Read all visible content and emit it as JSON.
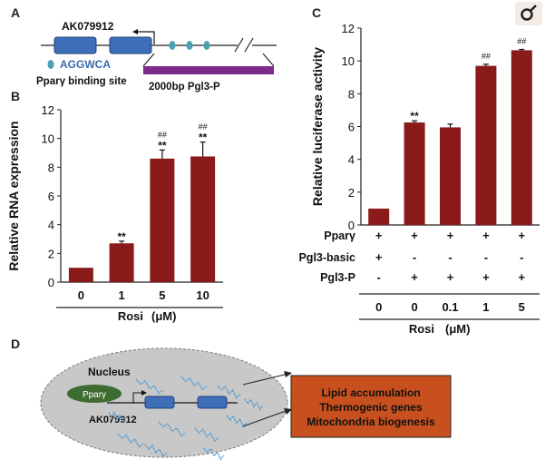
{
  "panel_a": {
    "letter": "A",
    "gene_label": "AK079912",
    "motif_legend": "AGGWCA",
    "binding_site_label": "Pparγ binding site",
    "promoter_label": "2000bp Pgl3-P"
  },
  "panel_b": {
    "letter": "B"
  },
  "panel_c": {
    "letter": "C"
  },
  "panel_d": {
    "letter": "D",
    "nucleus_label": "Nucleus",
    "ppar_label": "Pparγ",
    "gene_label": "AK079912",
    "outcomes": [
      "Lipid accumulation",
      "Thermogenic genes",
      "Mitochondria biogenesis"
    ]
  },
  "corner_icon": "search-icon",
  "colors": {
    "bar": "#8b1a1a",
    "motif": "#5aa0b8",
    "promoter": "#7b2a8a",
    "ppar": "#3d6b30",
    "outcome_box": "#c8501e",
    "nucleus": "#c8c8c8"
  },
  "chart_data": [
    {
      "type": "bar",
      "panel": "B",
      "ylabel": "Relative RNA expression",
      "xlabel": "Rosi (μM)",
      "xlabel_parts": [
        "Rosi",
        "(μM)"
      ],
      "categories": [
        "0",
        "1",
        "5",
        "10"
      ],
      "values": [
        1.0,
        2.7,
        8.6,
        8.75
      ],
      "errors": [
        0.0,
        0.15,
        0.6,
        1.0
      ],
      "annotations": [
        [
          "",
          ""
        ],
        [
          "**",
          ""
        ],
        [
          "**",
          "##"
        ],
        [
          "**",
          "##"
        ]
      ],
      "ylim": [
        0,
        12
      ],
      "yticks": [
        0,
        2,
        4,
        6,
        8,
        10,
        12
      ]
    },
    {
      "type": "bar",
      "panel": "C",
      "ylabel": "Relative luciferase activity",
      "xlabel": "Rosi (μM)",
      "xlabel_parts": [
        "Rosi",
        "(μM)"
      ],
      "categories": [
        "0",
        "0",
        "0.1",
        "1",
        "5"
      ],
      "values": [
        1.0,
        6.25,
        5.95,
        9.7,
        10.65
      ],
      "errors": [
        0.0,
        0.1,
        0.2,
        0.1,
        0.05
      ],
      "annotations": [
        [
          "",
          ""
        ],
        [
          "**",
          ""
        ],
        [
          "",
          ""
        ],
        [
          "",
          "##"
        ],
        [
          "",
          "##"
        ]
      ],
      "ylim": [
        0,
        12
      ],
      "yticks": [
        0,
        2,
        4,
        6,
        8,
        10,
        12
      ],
      "conditions": [
        {
          "label": "Pparγ",
          "values": [
            "+",
            "+",
            "+",
            "+",
            "+"
          ]
        },
        {
          "label": "Pgl3-basic",
          "values": [
            "+",
            "-",
            "-",
            "-",
            "-"
          ]
        },
        {
          "label": "Pgl3-P",
          "values": [
            "-",
            "+",
            "+",
            "+",
            "+"
          ]
        }
      ]
    }
  ]
}
